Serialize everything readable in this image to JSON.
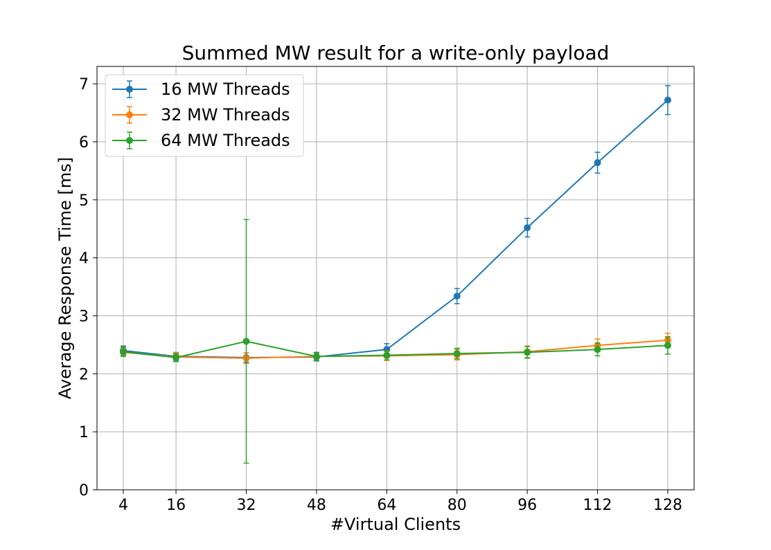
{
  "chart_data": {
    "type": "line",
    "title": "Summed MW result for a write-only payload",
    "xlabel": "#Virtual Clients",
    "ylabel": "Average Response Time [ms]",
    "x": [
      4,
      16,
      32,
      48,
      64,
      80,
      96,
      112,
      128
    ],
    "xticks": [
      "4",
      "16",
      "32",
      "48",
      "64",
      "80",
      "96",
      "112",
      "128"
    ],
    "yticks": [
      "0",
      "1",
      "2",
      "3",
      "4",
      "5",
      "6",
      "7"
    ],
    "ylim": [
      0,
      7.3
    ],
    "grid": true,
    "legend_position": "top-left",
    "series": [
      {
        "name": "16 MW Threads",
        "color": "#1f77b4",
        "values": [
          2.4,
          2.3,
          2.28,
          2.29,
          2.42,
          3.34,
          4.52,
          5.64,
          6.72
        ],
        "error": [
          0.08,
          0.07,
          0.08,
          0.07,
          0.1,
          0.13,
          0.16,
          0.18,
          0.25
        ]
      },
      {
        "name": "32 MW Threads",
        "color": "#ff7f0e",
        "values": [
          2.37,
          2.29,
          2.27,
          2.3,
          2.31,
          2.33,
          2.38,
          2.49,
          2.58
        ],
        "error": [
          0.07,
          0.08,
          0.09,
          0.07,
          0.08,
          0.09,
          0.1,
          0.11,
          0.12
        ]
      },
      {
        "name": "64 MW Threads",
        "color": "#2ca02c",
        "values": [
          2.38,
          2.28,
          2.56,
          2.3,
          2.32,
          2.35,
          2.37,
          2.42,
          2.49
        ],
        "error": [
          0.08,
          0.07,
          2.1,
          0.07,
          0.08,
          0.09,
          0.1,
          0.11,
          0.15
        ]
      }
    ]
  }
}
